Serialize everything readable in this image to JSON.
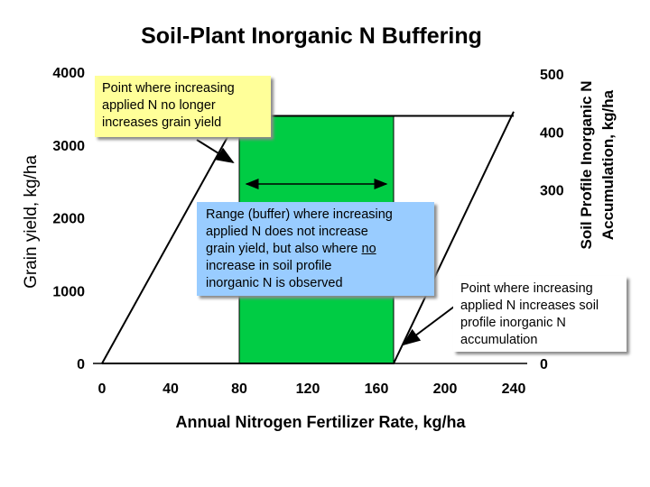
{
  "chart_data": {
    "type": "line",
    "title": "Soil-Plant Inorganic N Buffering",
    "xlabel": "Annual Nitrogen Fertilizer Rate, kg/ha",
    "ylabel": "Grain yield, kg/ha",
    "y2label_line1": "Soil Profile Inorganic N",
    "y2label_line2": "Accumulation, kg/ha",
    "x_ticks": [
      "0",
      "40",
      "80",
      "120",
      "160",
      "200",
      "240"
    ],
    "y_ticks": [
      "0",
      "1000",
      "2000",
      "3000",
      "4000"
    ],
    "y2_ticks": [
      "0",
      "300",
      "400",
      "500"
    ],
    "xlim": [
      0,
      240
    ],
    "ylim": [
      0,
      4000
    ],
    "y2lim": [
      0,
      550
    ],
    "buffer_range": [
      80,
      170
    ],
    "series": [
      {
        "axis": "left",
        "color": "#000000",
        "x": [
          0,
          80,
          240
        ],
        "y": [
          0,
          3400,
          3400
        ]
      },
      {
        "axis": "right",
        "color": "#000000",
        "x": [
          0,
          170,
          240
        ],
        "y": [
          0,
          0,
          435
        ]
      }
    ],
    "buffer_fill": "#00cc44",
    "annotations": {
      "plateau_lines": [
        "Point where increasing",
        "applied N no longer",
        "increases grain yield"
      ],
      "buffer_lines": [
        "Range (buffer) where increasing",
        "applied N does not increase",
        "grain yield, but also where "
      ],
      "buffer_underlined": "no",
      "buffer_lines2": [
        "increase in soil profile",
        "inorganic N is observed"
      ],
      "accum_lines": [
        "Point where increasing",
        "applied N increases soil",
        "profile inorganic N",
        "accumulation"
      ]
    }
  }
}
